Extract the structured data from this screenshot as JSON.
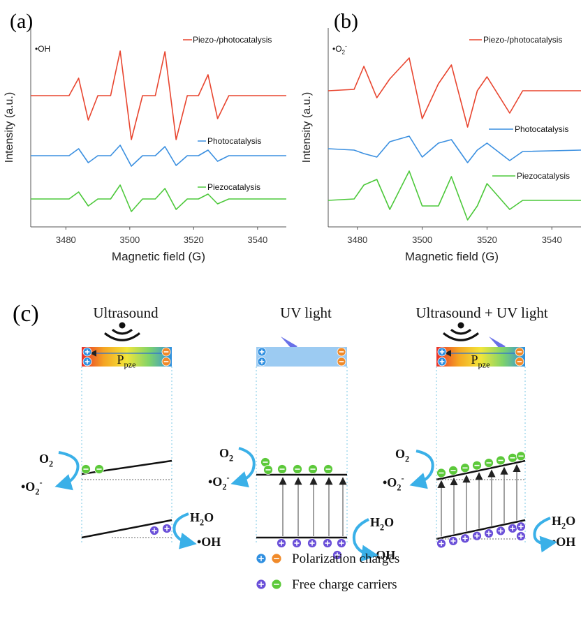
{
  "chart_data": [
    {
      "type": "line",
      "panel": "(a)",
      "annotation": "•OH",
      "xlabel": "Magnetic field (G)",
      "ylabel": "Intensity (a.u.)",
      "xlim": [
        3469,
        3549
      ],
      "xticks": [
        3480,
        3500,
        3520,
        3540
      ],
      "ylim": [
        0,
        285
      ],
      "x": [
        3469,
        3481,
        3484,
        3487,
        3490,
        3494,
        3497,
        3500.5,
        3504,
        3508,
        3511,
        3514.5,
        3518,
        3521.5,
        3524.5,
        3527.5,
        3531,
        3549
      ],
      "series": [
        {
          "name": "Piezo-/photocatalysis",
          "color": "#e8452f",
          "values": [
            188,
            188,
            213,
            153,
            188,
            188,
            252,
            125,
            188,
            188,
            251,
            125,
            188,
            188,
            218,
            155,
            188,
            188
          ]
        },
        {
          "name": "Photocatalysis",
          "color": "#3a8fe0",
          "values": [
            102,
            102,
            112,
            92,
            102,
            102,
            117,
            87,
            102,
            102,
            115,
            88,
            102,
            102,
            110,
            94,
            102,
            102
          ]
        },
        {
          "name": "Piezocatalysis",
          "color": "#4cc83a",
          "values": [
            40,
            40,
            50,
            30,
            40,
            40,
            60,
            22,
            40,
            40,
            55,
            25,
            40,
            40,
            47,
            33,
            40,
            40
          ]
        }
      ]
    },
    {
      "type": "line",
      "panel": "(b)",
      "annotation": {
        "base": "•O",
        "sub": "2",
        "sup": "-"
      },
      "xlabel": "Magnetic field (G)",
      "ylabel": "Intensity (a.u.)",
      "xlim": [
        3471,
        3549
      ],
      "xticks": [
        3480,
        3500,
        3520,
        3540
      ],
      "ylim": [
        0,
        285
      ],
      "x": [
        3471,
        3479,
        3482,
        3486,
        3490,
        3496,
        3500,
        3505,
        3509,
        3514,
        3517,
        3520,
        3527,
        3531,
        3549
      ],
      "series": [
        {
          "name": "Piezo-/photocatalysis",
          "color": "#e8452f",
          "values": [
            195,
            197,
            230,
            185,
            212,
            242,
            155,
            205,
            232,
            143,
            195,
            215,
            163,
            195,
            195
          ]
        },
        {
          "name": "Photocatalysis",
          "color": "#3a8fe0",
          "values": [
            112,
            110,
            105,
            100,
            122,
            130,
            100,
            120,
            125,
            92,
            110,
            120,
            95,
            108,
            110
          ]
        },
        {
          "name": "Piezocatalysis",
          "color": "#4cc83a",
          "values": [
            38,
            40,
            60,
            68,
            25,
            80,
            30,
            30,
            72,
            10,
            30,
            62,
            25,
            38,
            38
          ]
        }
      ]
    }
  ],
  "diagram": {
    "panel": "(c)",
    "columns": [
      {
        "title": "Ultrasound",
        "polarization": {
          "base": "P",
          "sub": "pze"
        }
      },
      {
        "title": "UV light"
      },
      {
        "title": "Ultrasound + UV light",
        "polarization": {
          "base": "P",
          "sub": "pze"
        }
      }
    ],
    "species": {
      "oxygen": {
        "base": "O",
        "sub": "2"
      },
      "superoxide": {
        "base": "•O",
        "sub": "2",
        "sup": "-"
      },
      "water": {
        "base": "H",
        "sub": "2",
        "tail": "O"
      },
      "hydroxyl": "•OH"
    },
    "legend": [
      "Polarization charges",
      "Free charge carriers"
    ]
  }
}
